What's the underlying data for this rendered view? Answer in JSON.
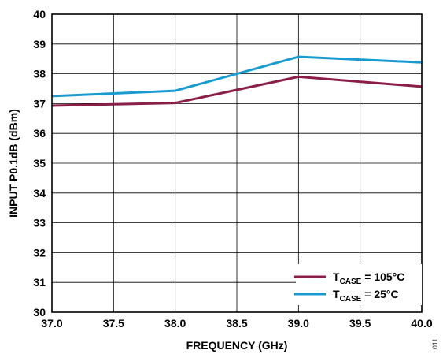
{
  "chart_data": {
    "type": "line",
    "title": "",
    "xlabel": "FREQUENCY (GHz)",
    "ylabel": "INPUT P0.1dB (dBm)",
    "xlim": [
      37.0,
      40.0
    ],
    "ylim": [
      30,
      40
    ],
    "x_ticks": [
      37.0,
      37.5,
      38.0,
      38.5,
      39.0,
      39.5,
      40.0
    ],
    "x_tick_labels": [
      "37.0",
      "37.5",
      "38.0",
      "38.5",
      "39.0",
      "39.5",
      "40.0"
    ],
    "y_ticks": [
      30,
      31,
      32,
      33,
      34,
      35,
      36,
      37,
      38,
      39,
      40
    ],
    "y_tick_labels": [
      "30",
      "31",
      "32",
      "33",
      "34",
      "35",
      "36",
      "37",
      "38",
      "39",
      "40"
    ],
    "grid": true,
    "legend_position": "bottom-right",
    "series": [
      {
        "name": "TCASE = 105°C",
        "legend_main": "T",
        "legend_sub": "CASE",
        "legend_rest": " = 105°C",
        "color": "#8B1E47",
        "x": [
          37.0,
          38.0,
          39.0,
          40.0
        ],
        "y": [
          36.93,
          37.02,
          37.9,
          37.57
        ]
      },
      {
        "name": "TCASE = 25°C",
        "legend_main": "T",
        "legend_sub": "CASE",
        "legend_rest": " = 25°C",
        "color": "#1A9BD0",
        "x": [
          37.0,
          38.0,
          39.0,
          40.0
        ],
        "y": [
          37.25,
          37.43,
          38.57,
          38.38
        ]
      }
    ]
  },
  "figure_id": "011"
}
